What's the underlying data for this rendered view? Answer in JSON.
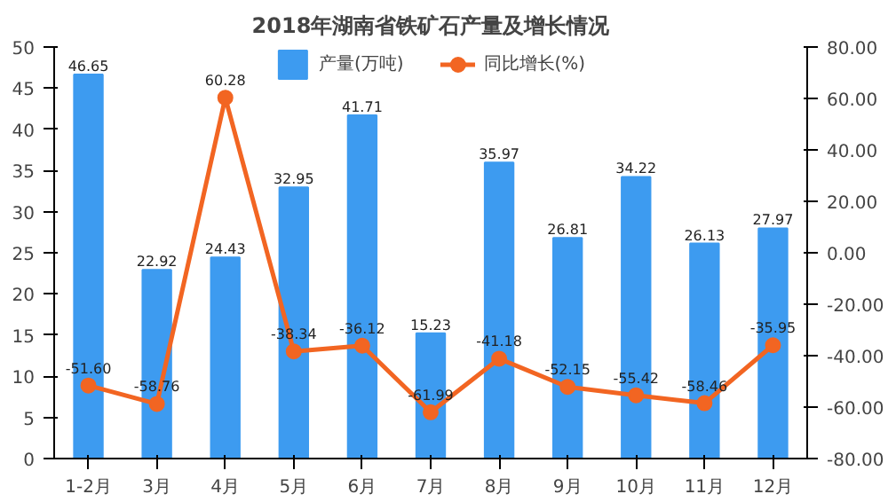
{
  "chart_data": {
    "type": "bar",
    "title": "2018年湖南省铁矿石产量及增长情况",
    "categories": [
      "1-2月",
      "3月",
      "4月",
      "5月",
      "6月",
      "7月",
      "8月",
      "9月",
      "10月",
      "11月",
      "12月"
    ],
    "series": [
      {
        "name": "产量(万吨)",
        "color": "#3d9bf0",
        "values": [
          46.65,
          22.92,
          24.43,
          32.95,
          41.71,
          15.23,
          35.97,
          26.81,
          34.22,
          26.13,
          27.97
        ],
        "value_labels": [
          "46.65",
          "22.92",
          "24.43",
          "32.95",
          "41.71",
          "15.23",
          "35.97",
          "26.81",
          "34.22",
          "26.13",
          "27.97"
        ]
      },
      {
        "name": "同比增长(%)",
        "type": "line",
        "axis": "y2",
        "color": "#f26522",
        "marker": "circle",
        "values": [
          -51.6,
          -58.76,
          60.28,
          -38.34,
          -36.12,
          -61.99,
          -41.18,
          -52.15,
          -55.42,
          -58.46,
          -35.95
        ],
        "value_labels": [
          "-51.60",
          "-58.76",
          "60.28",
          "-38.34",
          "-36.12",
          "-61.99",
          "-41.18",
          "-52.15",
          "-55.42",
          "-58.46",
          "-35.95"
        ]
      }
    ],
    "ylim": [
      0,
      50
    ],
    "yticks": [
      0,
      5,
      10,
      15,
      20,
      25,
      30,
      35,
      40,
      45,
      50
    ],
    "y2lim": [
      -80,
      80
    ],
    "y2ticks": [
      {
        "value": -80,
        "label": "-80.00"
      },
      {
        "value": -60,
        "label": "-60.00"
      },
      {
        "value": -40,
        "label": "-40.00"
      },
      {
        "value": -20,
        "label": "-20.00"
      },
      {
        "value": 0,
        "label": "0.00"
      },
      {
        "value": 20,
        "label": "20.00"
      },
      {
        "value": 40,
        "label": "40.00"
      },
      {
        "value": 60,
        "label": "60.00"
      },
      {
        "value": 80,
        "label": "80.00"
      }
    ],
    "legend": "top",
    "grid": false
  }
}
